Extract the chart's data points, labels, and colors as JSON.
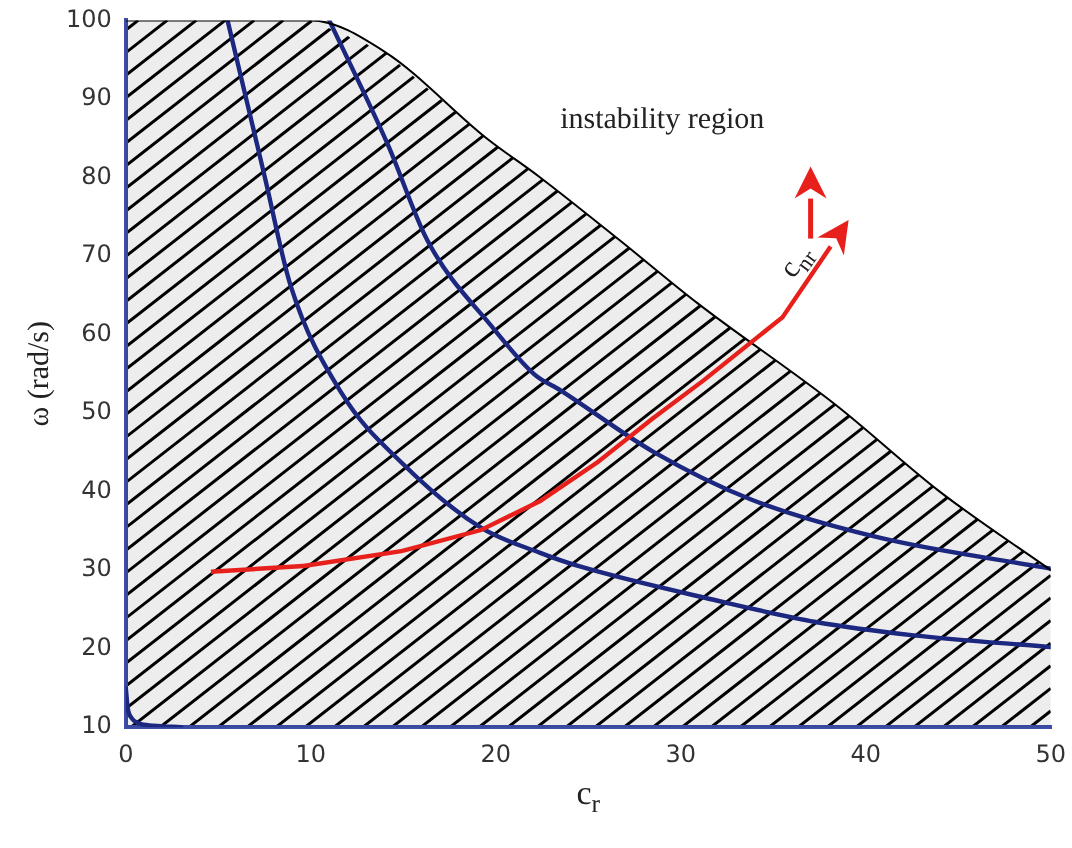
{
  "chart_data": {
    "type": "line",
    "xlabel": "c$_{r}$",
    "ylabel": "ω (rad/s)",
    "annotations": [
      "instability region",
      "c$_{nr}$"
    ],
    "xlim": [
      0,
      50
    ],
    "ylim": [
      10,
      100
    ],
    "xticks": [
      0,
      10,
      20,
      30,
      40,
      50
    ],
    "yticks": [
      10,
      20,
      30,
      40,
      50,
      60,
      70,
      80,
      90,
      100
    ],
    "grid": false,
    "legend": false,
    "marker": "none",
    "series": [
      {
        "type": "area",
        "color": "#000000",
        "x": [
          0,
          10,
          14,
          19.5,
          22.4,
          26.7,
          30.9,
          38.4,
          44,
          50
        ],
        "values": [
          100,
          100,
          96,
          85,
          80,
          72,
          64,
          51,
          40,
          30
        ]
      },
      {
        "color": "#1f2a8a",
        "x": [
          5.5,
          7.5,
          8.9,
          11.7,
          14.9,
          19.2,
          22.4,
          24.5,
          32,
          37.3,
          42.6,
          50
        ],
        "values": [
          100,
          80.2,
          66.3,
          52.4,
          43.7,
          35.4,
          32.2,
          30.5,
          26.1,
          23.4,
          21.7,
          20.2
        ]
      },
      {
        "color": "#1f2a8a",
        "x": [
          11,
          14.2,
          16.3,
          19.9,
          22.1,
          23.5,
          28.5,
          33.8,
          40.8,
          50
        ],
        "values": [
          100,
          84,
          72,
          60.7,
          54.9,
          52.9,
          45.1,
          39,
          34.1,
          30.2
        ]
      },
      {
        "color": "#1f2a8a",
        "x": [
          0,
          0.1,
          0.3,
          0.7,
          1.5,
          3
        ],
        "values": [
          15,
          12.5,
          11.2,
          10.5,
          10.2,
          10
        ]
      }
    ]
  }
}
